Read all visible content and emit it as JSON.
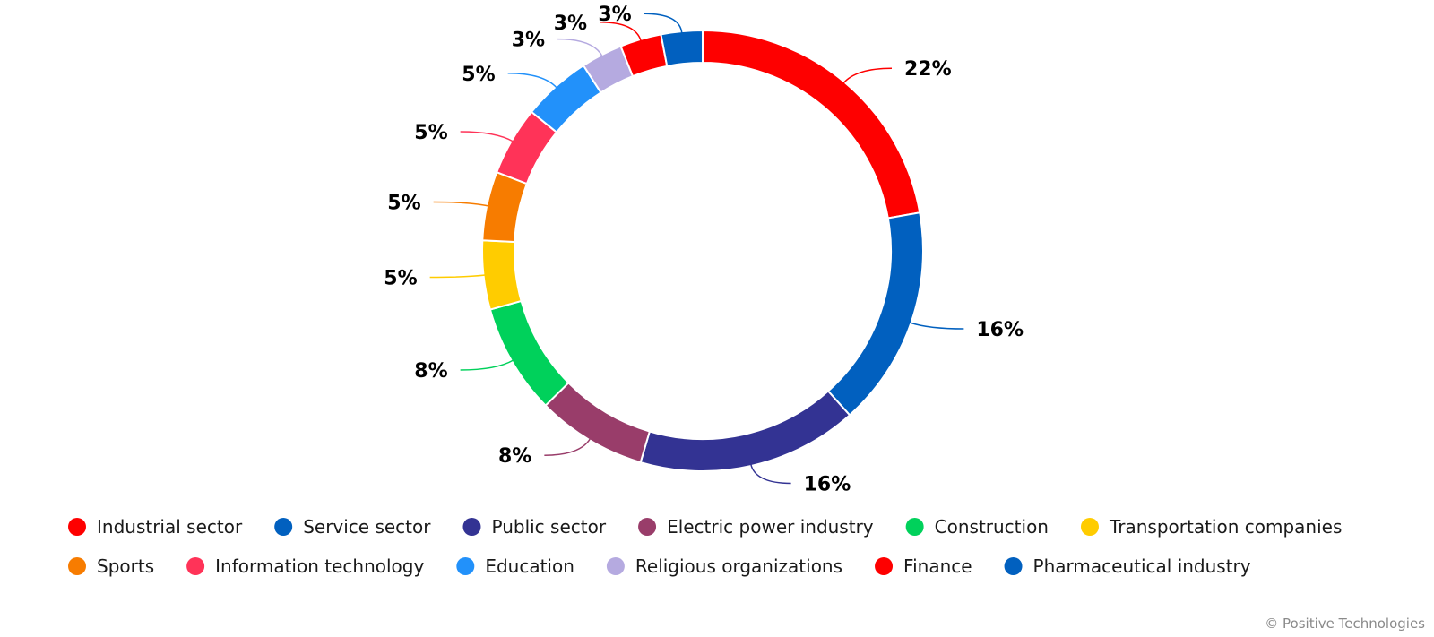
{
  "chart_data": {
    "type": "pie",
    "donut": true,
    "title": "",
    "legend_position": "bottom",
    "slices": [
      {
        "name": "Industrial sector",
        "value": 22,
        "label": "22%",
        "color": "#fe0000"
      },
      {
        "name": "Service sector",
        "value": 16,
        "label": "16%",
        "color": "#0160bf"
      },
      {
        "name": "Public sector",
        "value": 16,
        "label": "16%",
        "color": "#333393"
      },
      {
        "name": "Electric power industry",
        "value": 8,
        "label": "8%",
        "color": "#993d6a"
      },
      {
        "name": "Construction",
        "value": 8,
        "label": "8%",
        "color": "#00d15b"
      },
      {
        "name": "Transportation companies",
        "value": 5,
        "label": "5%",
        "color": "#ffcc00"
      },
      {
        "name": "Sports",
        "value": 5,
        "label": "5%",
        "color": "#f77c00"
      },
      {
        "name": "Information technology",
        "value": 5,
        "label": "5%",
        "color": "#ff3358"
      },
      {
        "name": "Education",
        "value": 5,
        "label": "5%",
        "color": "#2291fa"
      },
      {
        "name": "Religious organizations",
        "value": 3,
        "label": "3%",
        "color": "#b5aae0"
      },
      {
        "name": "Finance",
        "value": 3,
        "label": "3%",
        "color": "#fe0000"
      },
      {
        "name": "Pharmaceutical industry",
        "value": 3,
        "label": "3%",
        "color": "#0160bf"
      }
    ]
  },
  "credit": "© Positive Technologies"
}
